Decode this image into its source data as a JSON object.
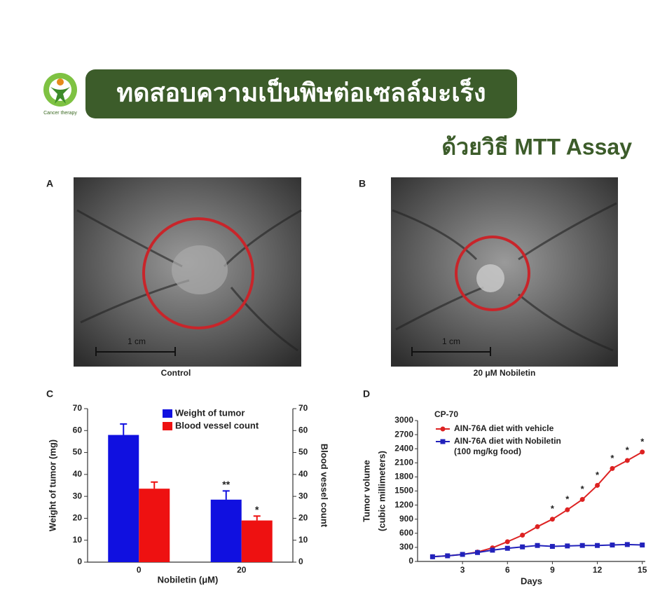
{
  "header": {
    "logo_text": "Cancer therapy",
    "title": "ทดสอบความเป็นพิษต่อเซลล์มะเร็ง",
    "subtitle": "ด้วยวิธี MTT Assay"
  },
  "photos": [
    {
      "label": "A",
      "scale_text": "1 cm",
      "caption": "Control"
    },
    {
      "label": "B",
      "scale_text": "1 cm",
      "caption": "20 μM Nobiletin"
    }
  ],
  "chart_data": [
    {
      "type": "bar",
      "panel": "C",
      "categories": [
        "0",
        "20"
      ],
      "series": [
        {
          "name": "Weight of tumor",
          "color": "#1010e0",
          "values": [
            58,
            28.5
          ],
          "errors": [
            5,
            4
          ]
        },
        {
          "name": "Blood vessel count",
          "color": "#ee1111",
          "axis": "y2",
          "values": [
            33.5,
            19
          ],
          "errors": [
            3,
            2
          ]
        }
      ],
      "annotations": [
        "**",
        "*"
      ],
      "ylim": [
        0,
        70
      ],
      "yticks": [
        0,
        10,
        20,
        30,
        40,
        50,
        60,
        70
      ],
      "y2lim": [
        0,
        70
      ],
      "y2ticks": [
        0,
        10,
        20,
        30,
        40,
        50,
        60,
        70
      ],
      "x_label": "Nobiletin (μM)",
      "y_label": "Weight of tumor (mg)",
      "y2_label": "Blood vessel count"
    },
    {
      "type": "line",
      "panel": "D",
      "title": "CP-70",
      "x": [
        1,
        2,
        3,
        4,
        5,
        6,
        7,
        8,
        9,
        10,
        11,
        12,
        13,
        14,
        15
      ],
      "series": [
        {
          "name": "AIN-76A diet with vehicle",
          "color": "#dd2222",
          "marker": "circle",
          "values": [
            100,
            120,
            150,
            200,
            290,
            420,
            560,
            740,
            900,
            1100,
            1320,
            1620,
            1980,
            2150,
            2330
          ]
        },
        {
          "name": "AIN-76A diet with Nobiletin",
          "note": "(100 mg/kg food)",
          "color": "#2222bb",
          "marker": "square",
          "values": [
            100,
            120,
            150,
            190,
            240,
            280,
            310,
            340,
            320,
            330,
            340,
            340,
            350,
            360,
            350
          ]
        }
      ],
      "annotations": [
        {
          "text": "*",
          "x": 9
        },
        {
          "text": "*",
          "x": 10
        },
        {
          "text": "*",
          "x": 11
        },
        {
          "text": "*",
          "x": 12
        },
        {
          "text": "*",
          "x": 13
        },
        {
          "text": "*",
          "x": 14
        },
        {
          "text": "*",
          "x": 15
        }
      ],
      "xlim": [
        0,
        15.2
      ],
      "xticks": [
        3,
        6,
        9,
        12,
        15
      ],
      "ylim": [
        0,
        3000
      ],
      "yticks": [
        0,
        300,
        600,
        900,
        1200,
        1500,
        1800,
        2100,
        2400,
        2700,
        3000
      ],
      "x_label": "Days",
      "y_label": [
        "Tumor volume",
        "(cubic millimeters)"
      ]
    }
  ]
}
